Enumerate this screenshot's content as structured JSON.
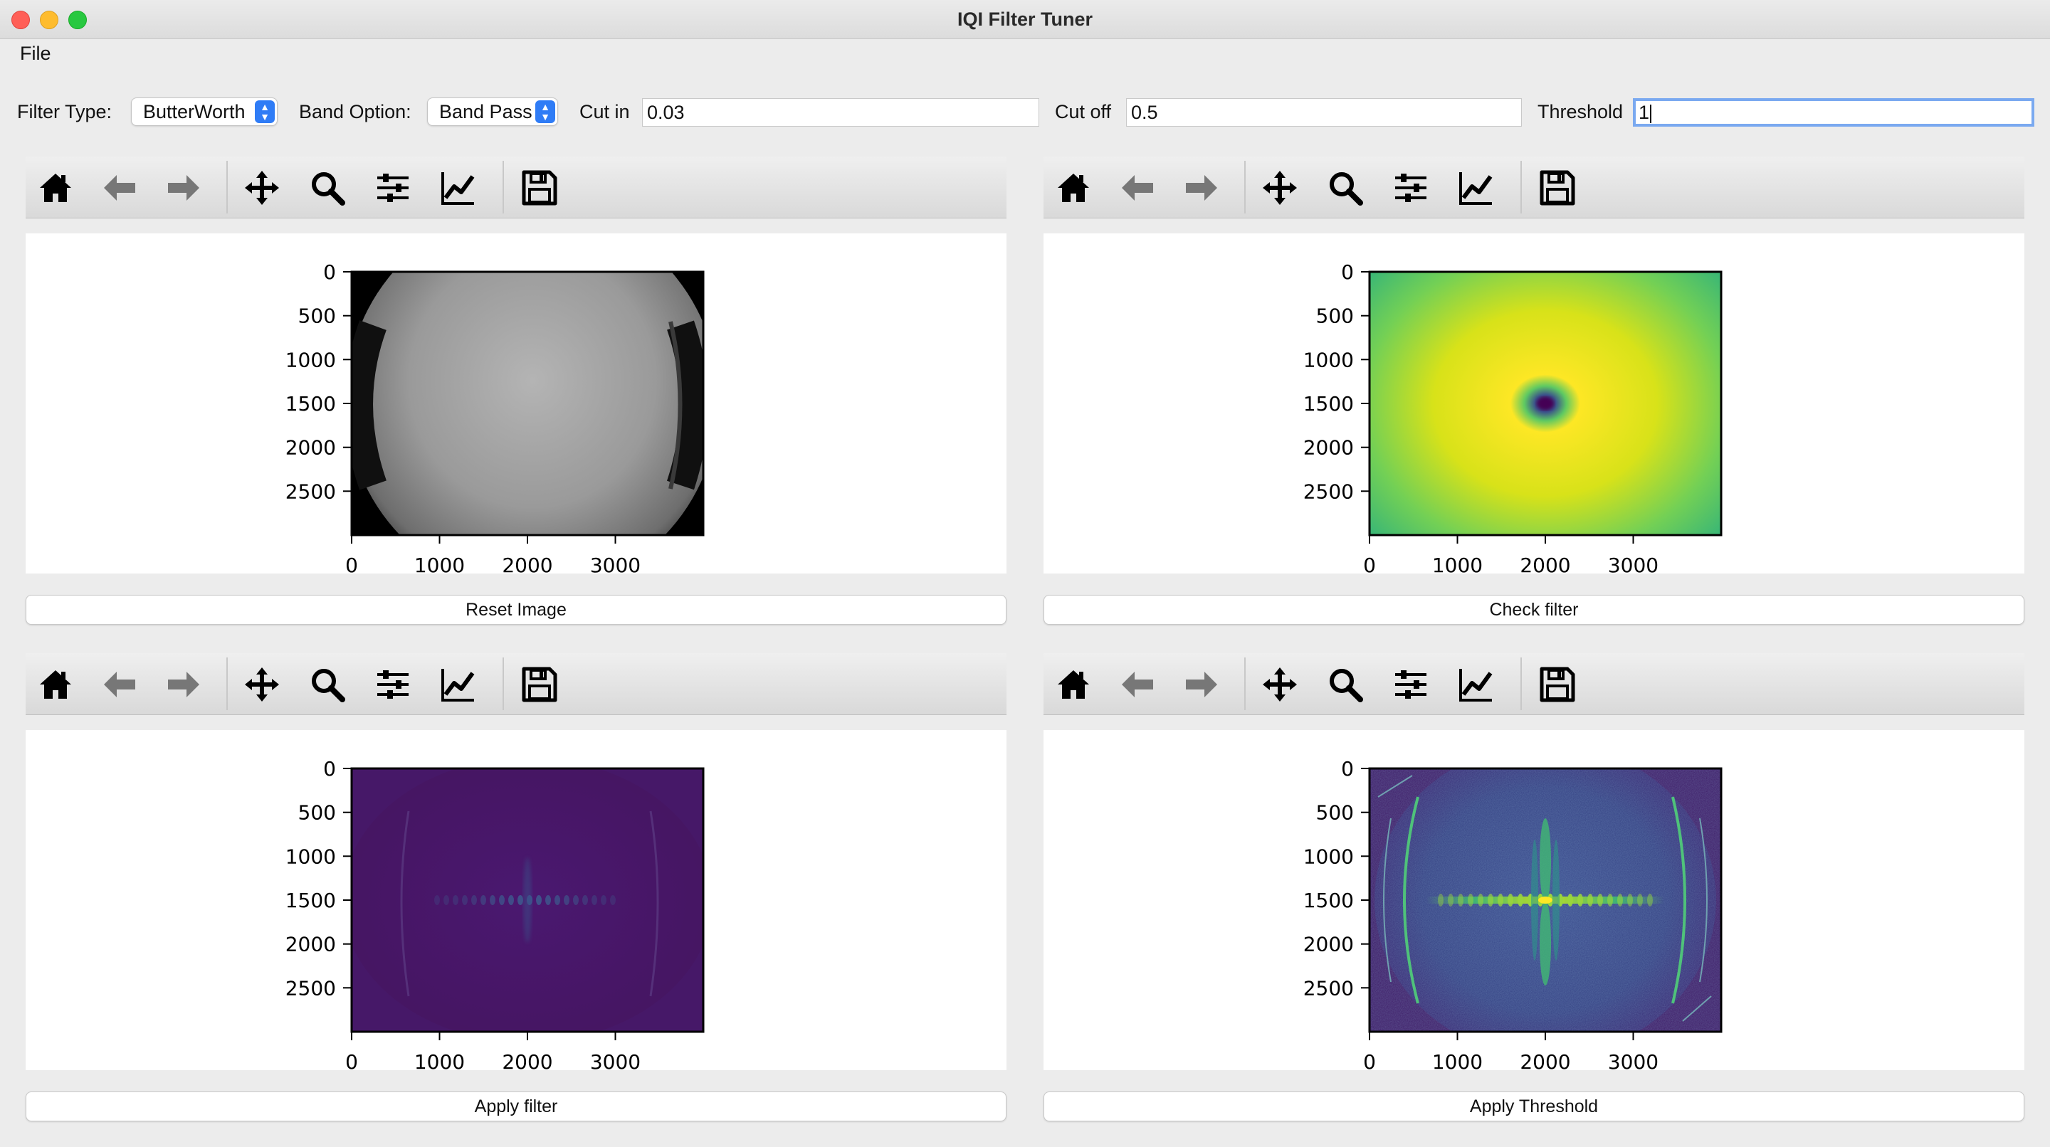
{
  "window": {
    "title": "IQI Filter Tuner"
  },
  "menu": {
    "file": "File"
  },
  "controls": {
    "filter_type_label": "Filter Type:",
    "filter_type_value": "ButterWorth",
    "band_option_label": "Band Option:",
    "band_option_value": "Band Pass",
    "cut_in_label": "Cut in",
    "cut_in_value": "0.03",
    "cut_off_label": "Cut off",
    "cut_off_value": "0.5",
    "threshold_label": "Threshold",
    "threshold_value": "1"
  },
  "toolbar_icons": [
    "home-icon",
    "back-arrow-icon",
    "forward-arrow-icon",
    "pan-icon",
    "zoom-icon",
    "configure-subplots-icon",
    "edit-axis-icon",
    "save-icon"
  ],
  "panels": [
    {
      "id": "original",
      "button_label": "Reset Image",
      "colormap": "gray"
    },
    {
      "id": "filter",
      "button_label": "Check filter",
      "colormap": "viridis"
    },
    {
      "id": "filtered",
      "button_label": "Apply filter",
      "colormap": "viridis"
    },
    {
      "id": "threshold",
      "button_label": "Apply Threshold",
      "colormap": "viridis"
    }
  ],
  "axes": {
    "y_ticks": [
      "0",
      "500",
      "1000",
      "1500",
      "2000",
      "2500"
    ],
    "x_ticks": [
      "0",
      "1000",
      "2000",
      "3000"
    ]
  }
}
